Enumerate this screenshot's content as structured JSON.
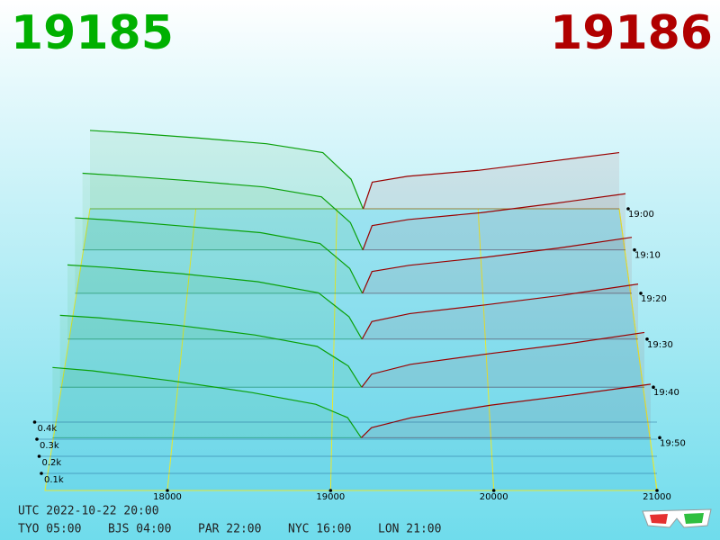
{
  "chart_data": {
    "type": "depth3d",
    "bid_price": 19185,
    "ask_price": 19186,
    "bid_color": "#0aa00a",
    "ask_color": "#9a0000",
    "bid_title_color": "#00b000",
    "ask_title_color": "#b00000",
    "xlim": [
      17250,
      21000
    ],
    "xticks": [
      18000,
      19000,
      20000,
      21000
    ],
    "ylim": [
      0,
      600
    ],
    "yticks": [
      {
        "value": 100,
        "label": "0.1k"
      },
      {
        "value": 200,
        "label": "0.2k"
      },
      {
        "value": 300,
        "label": "0.3k"
      },
      {
        "value": 400,
        "label": "0.4k"
      }
    ],
    "zlim": [
      0,
      60
    ],
    "zticks": [
      {
        "value": 0,
        "label": "19:00"
      },
      {
        "value": 10,
        "label": "19:10"
      },
      {
        "value": 20,
        "label": "19:20"
      },
      {
        "value": 30,
        "label": "19:30"
      },
      {
        "value": 40,
        "label": "19:40"
      },
      {
        "value": 50,
        "label": "19:50"
      }
    ],
    "bids": {
      "x": [
        17250,
        17500,
        18000,
        18500,
        18900,
        19100,
        19185
      ],
      "snapshots": [
        {
          "z": 0,
          "values": [
            530,
            515,
            480,
            440,
            380,
            200,
            0
          ]
        },
        {
          "z": 10,
          "values": [
            505,
            490,
            455,
            415,
            350,
            180,
            0
          ]
        },
        {
          "z": 20,
          "values": [
            485,
            470,
            430,
            390,
            320,
            160,
            0
          ]
        },
        {
          "z": 30,
          "values": [
            465,
            450,
            410,
            360,
            290,
            140,
            0
          ]
        },
        {
          "z": 40,
          "values": [
            440,
            425,
            380,
            320,
            250,
            130,
            0
          ]
        },
        {
          "z": 50,
          "values": [
            420,
            400,
            340,
            270,
            200,
            120,
            0
          ]
        }
      ]
    },
    "asks": {
      "x": [
        19186,
        19250,
        19500,
        20000,
        20500,
        21000
      ],
      "snapshots": [
        {
          "z": 0,
          "values": [
            0,
            180,
            220,
            260,
            320,
            380
          ]
        },
        {
          "z": 10,
          "values": [
            0,
            160,
            200,
            245,
            305,
            370
          ]
        },
        {
          "z": 20,
          "values": [
            0,
            140,
            180,
            230,
            290,
            360
          ]
        },
        {
          "z": 30,
          "values": [
            0,
            110,
            160,
            215,
            275,
            345
          ]
        },
        {
          "z": 40,
          "values": [
            0,
            80,
            140,
            205,
            265,
            335
          ]
        },
        {
          "z": 50,
          "values": [
            0,
            60,
            120,
            195,
            255,
            320
          ]
        }
      ]
    },
    "utc": "UTC 2022-10-22 20:00",
    "clocks": [
      "TYO 05:00",
      "BJS 04:00",
      "PAR 22:00",
      "NYC 16:00",
      "LON 21:00"
    ]
  }
}
